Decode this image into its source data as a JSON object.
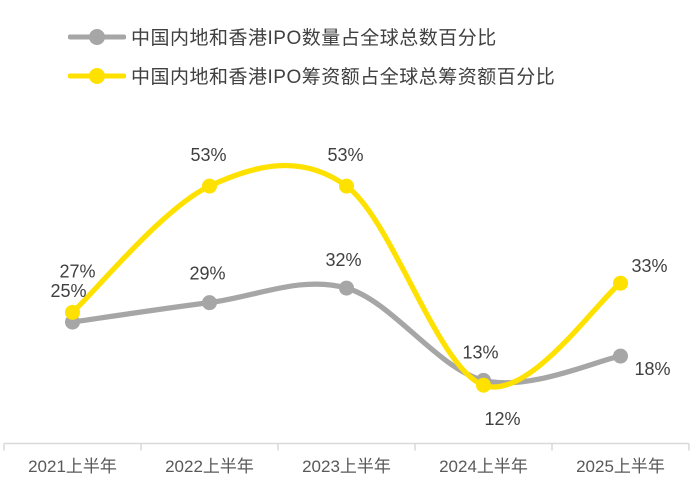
{
  "chart_data": {
    "type": "line",
    "categories": [
      "2021上半年",
      "2022上半年",
      "2023上半年",
      "2024上半年",
      "2025上半年"
    ],
    "series": [
      {
        "name": "中国内地和香港IPO数量占全球总数百分比",
        "color": "#a6a6a6",
        "values": [
          25,
          29,
          32,
          13,
          18
        ],
        "labels": [
          "25%",
          "29%",
          "32%",
          "13%",
          "18%"
        ],
        "label_offsets": [
          [
            -4,
            -31
          ],
          [
            -2,
            -29
          ],
          [
            -3,
            -28
          ],
          [
            -3,
            -28
          ],
          [
            32,
            13
          ]
        ]
      },
      {
        "name": "中国内地和香港IPO筹资额占全球总筹资额百分比",
        "color": "#ffe100",
        "values": [
          27,
          53,
          53,
          12,
          33
        ],
        "labels": [
          "27%",
          "53%",
          "53%",
          "12%",
          "33%"
        ],
        "label_offsets": [
          [
            5,
            -41
          ],
          [
            -1,
            -31
          ],
          [
            -1,
            -31
          ],
          [
            19,
            34
          ],
          [
            29,
            -17
          ]
        ]
      }
    ],
    "title": "",
    "xlabel": "",
    "ylabel": "",
    "ylim": [
      0,
      60
    ],
    "grid": false,
    "legend_position": "top-left",
    "line_style": "smooth",
    "marker": "circle",
    "label_format": "{value}%",
    "data_label_color": "#404040",
    "axis_line_color": "#d9d9d9",
    "tick_label_color": "#595959"
  }
}
